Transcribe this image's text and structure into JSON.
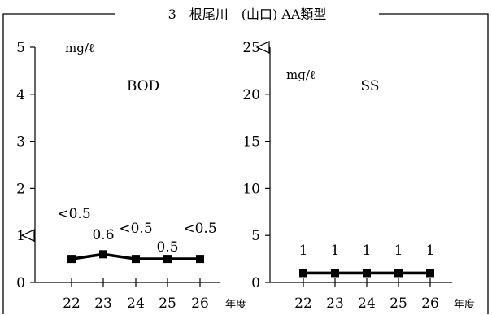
{
  "frame_title": "3　根尾川　(山口) AA類型",
  "chart_data": [
    {
      "type": "line",
      "name": "BOD",
      "unit": "mg/ℓ",
      "ylim": [
        0,
        5
      ],
      "yticks": [
        0,
        1,
        2,
        3,
        4,
        5
      ],
      "xlabel": "年度",
      "categories": [
        "22",
        "23",
        "24",
        "25",
        "26"
      ],
      "values": [
        0.5,
        0.6,
        0.5,
        0.5,
        0.5
      ],
      "data_labels": [
        "<0.5",
        "0.6",
        "<0.5",
        "0.5",
        "<0.5"
      ],
      "standard": 1,
      "marker": "square",
      "grid": false
    },
    {
      "type": "line",
      "name": "SS",
      "unit": "mg/ℓ",
      "ylim": [
        0,
        25
      ],
      "yticks": [
        0,
        5,
        10,
        15,
        20,
        25
      ],
      "xlabel": "年度",
      "categories": [
        "22",
        "23",
        "24",
        "25",
        "26"
      ],
      "values": [
        1,
        1,
        1,
        1,
        1
      ],
      "data_labels": [
        "1",
        "1",
        "1",
        "1",
        "1"
      ],
      "standard": 25,
      "marker": "square",
      "grid": false
    }
  ]
}
